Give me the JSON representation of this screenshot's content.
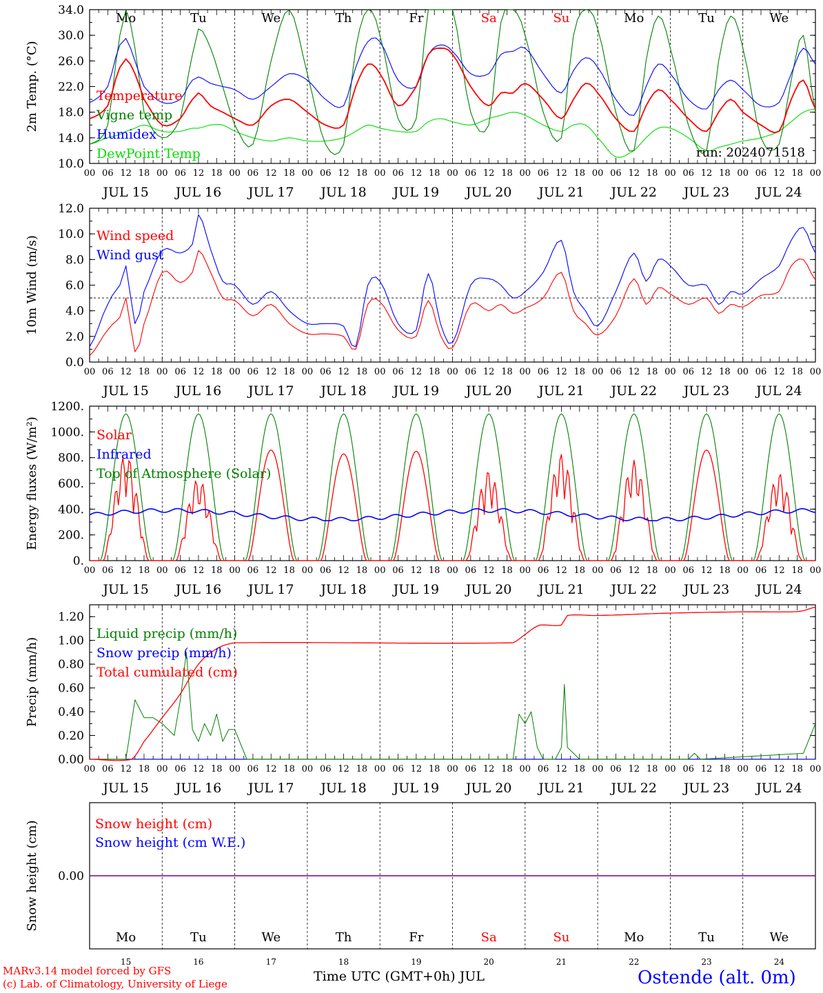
{
  "colors": {
    "red": "#ff0000",
    "green": "#008000",
    "blue": "#0000ff",
    "lightgreen": "#00dd00",
    "purple": "#800080",
    "grid": "#000000"
  },
  "footer": {
    "model": "MARv3.14 model forced by GFS",
    "lab": "(c) Lab. of Climatology, University of Liege",
    "xaxis": "Time UTC (GMT+0h) JUL",
    "station": "Ostende (alt. 0m)"
  },
  "hour_ticks": [
    "00",
    "06",
    "12",
    "18"
  ],
  "date_labels": [
    "JUL 15",
    "JUL 16",
    "JUL 17",
    "JUL 18",
    "JUL 19",
    "JUL 20",
    "JUL 21",
    "JUL 22",
    "JUL 23",
    "JUL 24"
  ],
  "days": [
    {
      "name": "Mo",
      "num": "15",
      "weekend": false
    },
    {
      "name": "Tu",
      "num": "16",
      "weekend": false
    },
    {
      "name": "We",
      "num": "17",
      "weekend": false
    },
    {
      "name": "Th",
      "num": "18",
      "weekend": false
    },
    {
      "name": "Fr",
      "num": "19",
      "weekend": false
    },
    {
      "name": "Sa",
      "num": "20",
      "weekend": true
    },
    {
      "name": "Su",
      "num": "21",
      "weekend": true
    },
    {
      "name": "Mo",
      "num": "22",
      "weekend": false
    },
    {
      "name": "Tu",
      "num": "23",
      "weekend": false
    },
    {
      "name": "We",
      "num": "24",
      "weekend": false
    }
  ],
  "chart_data": [
    {
      "type": "line",
      "ylabel": "2m Temp. (°C)",
      "ylim": [
        10,
        34
      ],
      "yticks": [
        "10.0",
        "14.0",
        "18.0",
        "22.0",
        "26.0",
        "30.0",
        "34.0"
      ],
      "annotation": "run: 2024071518",
      "x_hours": [
        0,
        6,
        10,
        12,
        15,
        18,
        24,
        30,
        34,
        36,
        40,
        44,
        48,
        54,
        60,
        66,
        72,
        78,
        84,
        88,
        92,
        96,
        102,
        108,
        112,
        116,
        120,
        126,
        132,
        136,
        140,
        144,
        150,
        156,
        160,
        164,
        168,
        174,
        180,
        184,
        188,
        192,
        198,
        204,
        208,
        212,
        216,
        222,
        228,
        232,
        236,
        240
      ],
      "series": [
        {
          "name": "Temperature",
          "color": "red",
          "values": [
            17,
            19,
            25,
            26.3,
            24,
            20,
            16,
            17,
            20,
            21,
            19,
            18,
            17,
            16,
            19,
            20,
            18,
            16,
            16,
            22,
            25.5,
            24,
            19,
            22,
            27,
            28,
            27,
            22,
            19,
            21,
            21,
            22.5,
            20,
            17,
            20,
            22.5,
            21,
            17,
            15,
            19,
            21.5,
            20,
            17,
            15,
            18,
            20,
            18,
            16,
            15,
            20,
            23,
            18.5
          ]
        },
        {
          "name": "Vigne temp",
          "color": "green",
          "values": [
            13,
            16,
            30,
            34,
            28,
            18,
            14,
            17,
            27,
            31,
            28,
            22,
            16,
            13,
            26,
            34,
            24,
            13,
            13,
            28,
            34,
            30,
            17,
            17,
            34,
            34,
            34,
            18,
            16,
            32,
            34,
            30,
            18,
            14,
            30,
            34,
            31,
            18,
            12,
            26,
            33,
            28,
            16,
            12,
            26,
            33,
            28,
            14,
            13,
            23,
            30,
            18
          ]
        },
        {
          "name": "Humidex",
          "color": "blue",
          "values": [
            19.5,
            22,
            28.5,
            29.5,
            26,
            22,
            19.5,
            20,
            23,
            23.5,
            22.5,
            22,
            21.5,
            20,
            22,
            24,
            23,
            20,
            19,
            25,
            29,
            29,
            23,
            22,
            27,
            28.5,
            27.5,
            24,
            24,
            27,
            27.5,
            28,
            24,
            21,
            24.5,
            26.5,
            25,
            20,
            17.5,
            22,
            25.5,
            24,
            20,
            18.5,
            21.5,
            23,
            21.5,
            19,
            19.5,
            24,
            28,
            25.5
          ]
        },
        {
          "name": "DewPoint Temp",
          "color": "lightgreen",
          "values": [
            13,
            14,
            14.5,
            15,
            15.5,
            16,
            15,
            15,
            15.5,
            15.5,
            16,
            16,
            15,
            14,
            13.5,
            14,
            13.5,
            13.5,
            14,
            15,
            16,
            15.5,
            15,
            15,
            16.5,
            17,
            16.5,
            16,
            17,
            17.5,
            18,
            17.5,
            16,
            15,
            16,
            16,
            14,
            11,
            12,
            14,
            15.5,
            15.5,
            14,
            12,
            12.5,
            13,
            13.5,
            14,
            15,
            16.5,
            18,
            18.5
          ]
        }
      ]
    },
    {
      "type": "line",
      "ylabel": "10m Wind (m/s)",
      "ylim": [
        0,
        12
      ],
      "yticks": [
        "0.0",
        "2.0",
        "4.0",
        "6.0",
        "8.0",
        "10.0",
        "12.0"
      ],
      "ref_line": 5,
      "x_hours": [
        0,
        6,
        10,
        12,
        15,
        18,
        24,
        30,
        34,
        36,
        40,
        44,
        48,
        54,
        60,
        66,
        72,
        78,
        84,
        88,
        92,
        96,
        102,
        108,
        112,
        116,
        120,
        126,
        132,
        136,
        140,
        144,
        150,
        156,
        160,
        164,
        168,
        174,
        180,
        184,
        188,
        192,
        198,
        204,
        208,
        212,
        216,
        222,
        228,
        232,
        236,
        240
      ],
      "series": [
        {
          "name": "Wind speed",
          "color": "red",
          "values": [
            0.5,
            2.5,
            3.5,
            5,
            0.8,
            3,
            7,
            6.2,
            7,
            8.7,
            7,
            5,
            4.8,
            3.6,
            4.5,
            3,
            2.2,
            2.2,
            2,
            1,
            4.5,
            4.7,
            2.5,
            2,
            4.8,
            2.1,
            1.1,
            4.5,
            4,
            4.5,
            3.8,
            4.2,
            5,
            7,
            4,
            3,
            2.1,
            3.6,
            6.5,
            4.5,
            5.8,
            5.3,
            4.5,
            5,
            3.8,
            4.5,
            4.3,
            5.2,
            5.5,
            7.5,
            8,
            6.4
          ]
        },
        {
          "name": "Wind gust",
          "color": "blue",
          "values": [
            1.2,
            4.5,
            6,
            7.5,
            3,
            5.5,
            8.7,
            8.5,
            9.2,
            11.5,
            8.8,
            6.3,
            6,
            4.5,
            5.5,
            4,
            3,
            3,
            2.8,
            1.2,
            6,
            6.3,
            3,
            2.5,
            6.9,
            3,
            1.5,
            6,
            6.5,
            6,
            5,
            5.5,
            7,
            9.5,
            5.5,
            4,
            2.8,
            5.5,
            8.5,
            6.3,
            8,
            7.5,
            6,
            6,
            4.5,
            5.5,
            5.3,
            6.5,
            7.5,
            9.5,
            10.5,
            8.5
          ]
        }
      ]
    },
    {
      "type": "line",
      "ylabel": "Energy fluxes (W/m²)",
      "ylim": [
        0,
        1200
      ],
      "yticks": [
        "0.",
        "200.",
        "400.",
        "600.",
        "800.",
        "1000.",
        "1200."
      ],
      "series": [
        {
          "name": "Solar",
          "color": "red",
          "peaks": [
            830,
            640,
            860,
            830,
            850,
            700,
            830,
            780,
            860,
            680
          ]
        },
        {
          "name": "Infrared",
          "color": "blue",
          "values_note": "~310-410 W/m²",
          "level_min": 310,
          "level_max": 410
        },
        {
          "name": "Top of Atmosphere (Solar)",
          "color": "green",
          "peak": 1140
        }
      ]
    },
    {
      "type": "line",
      "ylabel": "Precip (mm/h)",
      "ylim": [
        0,
        1.3
      ],
      "yticks": [
        "0.00",
        "0.20",
        "0.40",
        "0.60",
        "0.80",
        "1.00",
        "1.20"
      ],
      "series": [
        {
          "name": "Liquid precip (mm/h)",
          "color": "green",
          "x_hours": [
            0,
            12,
            15,
            18,
            21,
            24,
            28,
            30,
            32,
            34,
            36,
            38,
            40,
            42,
            44,
            46,
            48,
            52,
            140,
            142,
            144,
            146,
            148,
            150,
            154,
            156,
            157,
            158,
            160,
            162,
            198,
            200,
            202,
            236,
            240
          ],
          "values": [
            0,
            0,
            0.5,
            0.35,
            0.35,
            0.3,
            0.2,
            0.5,
            0.9,
            0.25,
            0.15,
            0.3,
            0.2,
            0.38,
            0.15,
            0.25,
            0.25,
            0,
            0,
            0.38,
            0.3,
            0.4,
            0.1,
            0,
            0,
            0.1,
            0.63,
            0.1,
            0.05,
            0,
            0,
            0.05,
            0,
            0.05,
            0.3
          ]
        },
        {
          "name": "Snow precip (mm/h)",
          "color": "blue",
          "values_note": "0 throughout"
        },
        {
          "name": "Total cumulated (cm)",
          "color": "red",
          "x_hours": [
            0,
            14,
            18,
            24,
            30,
            36,
            42,
            48,
            140,
            144,
            148,
            150,
            156,
            158,
            168,
            192,
            216,
            232,
            236,
            240
          ],
          "values": [
            0,
            0,
            0.15,
            0.35,
            0.55,
            0.8,
            0.93,
            0.98,
            0.98,
            1.05,
            1.12,
            1.13,
            1.13,
            1.21,
            1.21,
            1.23,
            1.24,
            1.24,
            1.25,
            1.28
          ]
        }
      ]
    },
    {
      "type": "line",
      "ylabel": "Snow height (cm)",
      "ylim": [
        -1,
        1
      ],
      "yticks": [
        "0.00"
      ],
      "series": [
        {
          "name": "Snow height (cm)",
          "color": "red",
          "values": [
            0,
            0
          ]
        },
        {
          "name": "Snow height (cm W.E.)",
          "color": "blue",
          "values": [
            0,
            0
          ]
        }
      ]
    }
  ]
}
